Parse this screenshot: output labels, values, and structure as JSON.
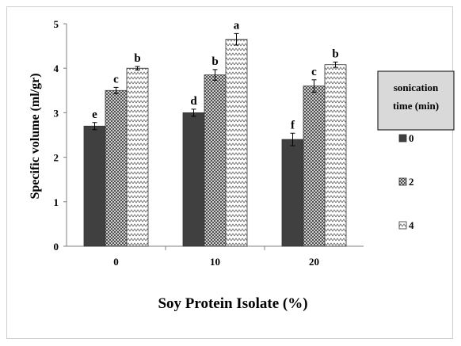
{
  "chart_data": {
    "type": "bar",
    "title": "",
    "xlabel": "Soy Protein Isolate (%)",
    "ylabel": "Specific volume (ml/gr)",
    "ylim": [
      0,
      5
    ],
    "yticks": [
      "0",
      "1",
      "2",
      "3",
      "4",
      "5"
    ],
    "categories": [
      "0",
      "10",
      "20"
    ],
    "legend": {
      "title_line1": "sonication",
      "title_line2": "time (min)",
      "placement": "right"
    },
    "series": [
      {
        "name": "0",
        "values": [
          2.7,
          3.0,
          2.4
        ],
        "errors": [
          0.08,
          0.08,
          0.14
        ],
        "letters": [
          "e",
          "d",
          "f"
        ],
        "color": "#404040",
        "pattern": "solid"
      },
      {
        "name": "2",
        "values": [
          3.5,
          3.85,
          3.6
        ],
        "errors": [
          0.07,
          0.12,
          0.14
        ],
        "letters": [
          "c",
          "b",
          "c"
        ],
        "color": "#808080",
        "pattern": "checker"
      },
      {
        "name": "4",
        "values": [
          4.0,
          4.65,
          4.08
        ],
        "errors": [
          0.04,
          0.13,
          0.06
        ],
        "letters": [
          "b",
          "a",
          "b"
        ],
        "color": "#ffffff",
        "pattern": "zigzag"
      }
    ],
    "grid": false
  }
}
